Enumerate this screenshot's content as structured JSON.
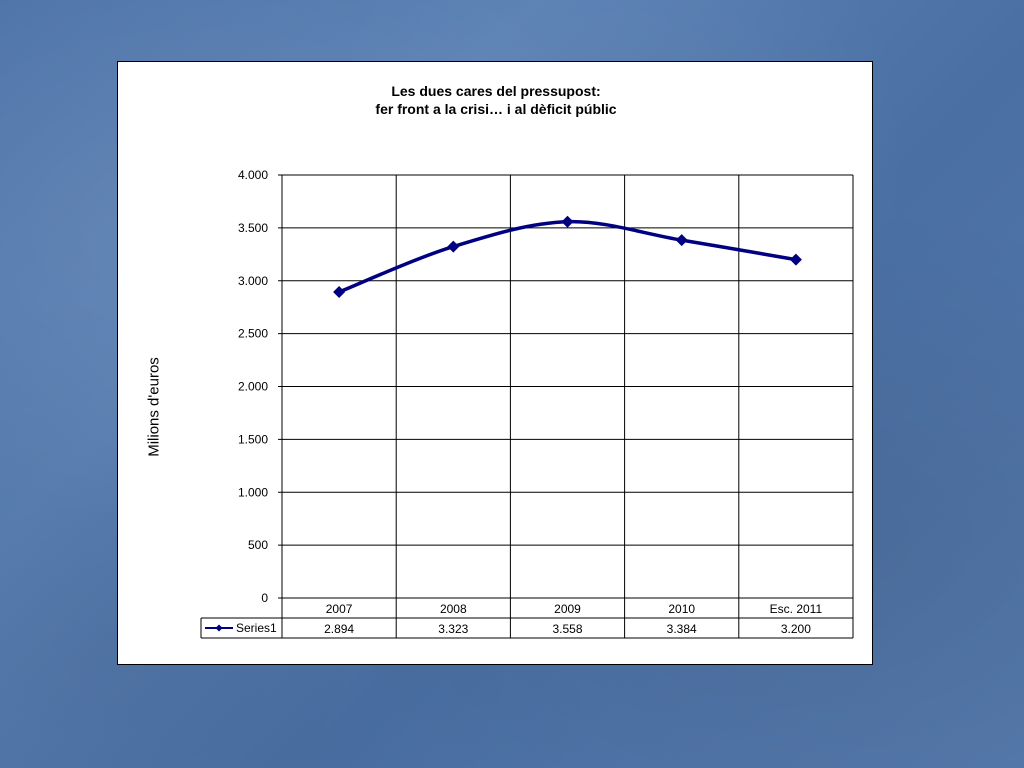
{
  "chart_data": {
    "type": "line",
    "title_line1": "Les dues cares del pressupost:",
    "title_line2": "fer front a la crisi… i al dèficit públic",
    "ylabel": "Milions d'euros",
    "xlabel": "",
    "ylim": [
      0,
      4000
    ],
    "yticks": [
      0,
      500,
      1000,
      1500,
      2000,
      2500,
      3000,
      3500,
      4000
    ],
    "ytick_labels": [
      "0",
      "500",
      "1.000",
      "1.500",
      "2.000",
      "2.500",
      "3.000",
      "3.500",
      "4.000"
    ],
    "categories": [
      "2007",
      "2008",
      "2009",
      "2010",
      "Esc. 2011"
    ],
    "series": [
      {
        "name": "Series1",
        "values": [
          2894,
          3323,
          3558,
          3384,
          3200
        ],
        "value_labels": [
          "2.894",
          "3.323",
          "3.558",
          "3.384",
          "3.200"
        ],
        "color": "#000080"
      }
    ],
    "grid": true,
    "data_table": true,
    "smooth": true
  }
}
